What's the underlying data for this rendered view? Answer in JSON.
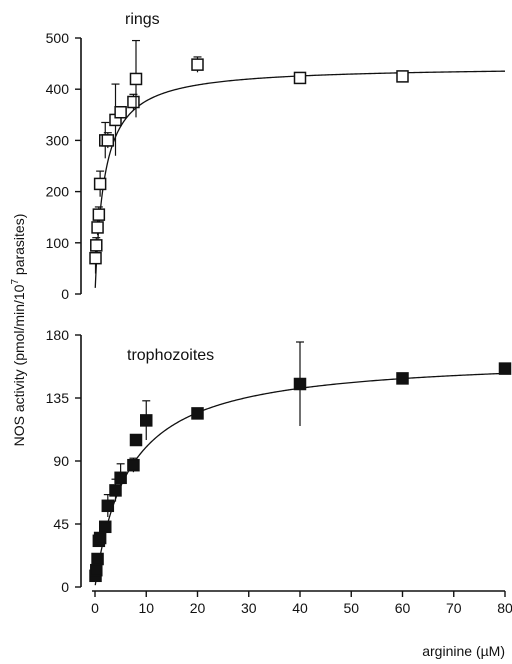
{
  "figure": {
    "ylabel_main": "NOS activity (pmol/min/10",
    "ylabel_exp": "7",
    "ylabel_tail": " parasites)",
    "xlabel": "arginine (µM)"
  },
  "chart_data": [
    {
      "type": "scatter",
      "panel_label": "rings",
      "marker": "open-square",
      "xlim": [
        0,
        80
      ],
      "ylim": [
        0,
        500
      ],
      "yticks": [
        0,
        100,
        200,
        300,
        400,
        500
      ],
      "points": [
        {
          "x": 0.1,
          "y": 70,
          "err": 30
        },
        {
          "x": 0.25,
          "y": 95,
          "err": 15
        },
        {
          "x": 0.5,
          "y": 130,
          "err": 15
        },
        {
          "x": 0.75,
          "y": 155,
          "err": 15
        },
        {
          "x": 1,
          "y": 215,
          "err": 25
        },
        {
          "x": 2,
          "y": 300,
          "err": 35
        },
        {
          "x": 2.5,
          "y": 300,
          "err": 15
        },
        {
          "x": 4,
          "y": 340,
          "err": 70
        },
        {
          "x": 5,
          "y": 355,
          "err": 10
        },
        {
          "x": 7.5,
          "y": 375,
          "err": 15
        },
        {
          "x": 8,
          "y": 420,
          "err": 75
        },
        {
          "x": 20,
          "y": 448,
          "err": 15
        },
        {
          "x": 40,
          "y": 422,
          "err": 5
        },
        {
          "x": 60,
          "y": 425,
          "err": 5
        }
      ],
      "fit": {
        "vmax": 445,
        "km": 1.8
      }
    },
    {
      "type": "scatter",
      "panel_label": "trophozoites",
      "marker": "filled-square",
      "xlim": [
        0,
        80
      ],
      "ylim": [
        0,
        180
      ],
      "yticks": [
        0,
        45,
        90,
        135,
        180
      ],
      "xticks": [
        0,
        10,
        20,
        30,
        40,
        50,
        60,
        70,
        80
      ],
      "points": [
        {
          "x": 0.1,
          "y": 8,
          "err": 0
        },
        {
          "x": 0.25,
          "y": 12,
          "err": 0
        },
        {
          "x": 0.5,
          "y": 20,
          "err": 0
        },
        {
          "x": 0.75,
          "y": 33,
          "err": 0
        },
        {
          "x": 1,
          "y": 35,
          "err": 0
        },
        {
          "x": 2,
          "y": 43,
          "err": 0
        },
        {
          "x": 2.5,
          "y": 58,
          "err": 8
        },
        {
          "x": 4,
          "y": 69,
          "err": 8
        },
        {
          "x": 5,
          "y": 78,
          "err": 10
        },
        {
          "x": 7.5,
          "y": 87,
          "err": 5
        },
        {
          "x": 8,
          "y": 105,
          "err": 0
        },
        {
          "x": 10,
          "y": 119,
          "err": 14
        },
        {
          "x": 20,
          "y": 124,
          "err": 0
        },
        {
          "x": 40,
          "y": 145,
          "err": 30
        },
        {
          "x": 60,
          "y": 149,
          "err": 0
        },
        {
          "x": 80,
          "y": 156,
          "err": 0
        }
      ],
      "fit": {
        "vmax": 165,
        "km": 6.5
      }
    }
  ]
}
